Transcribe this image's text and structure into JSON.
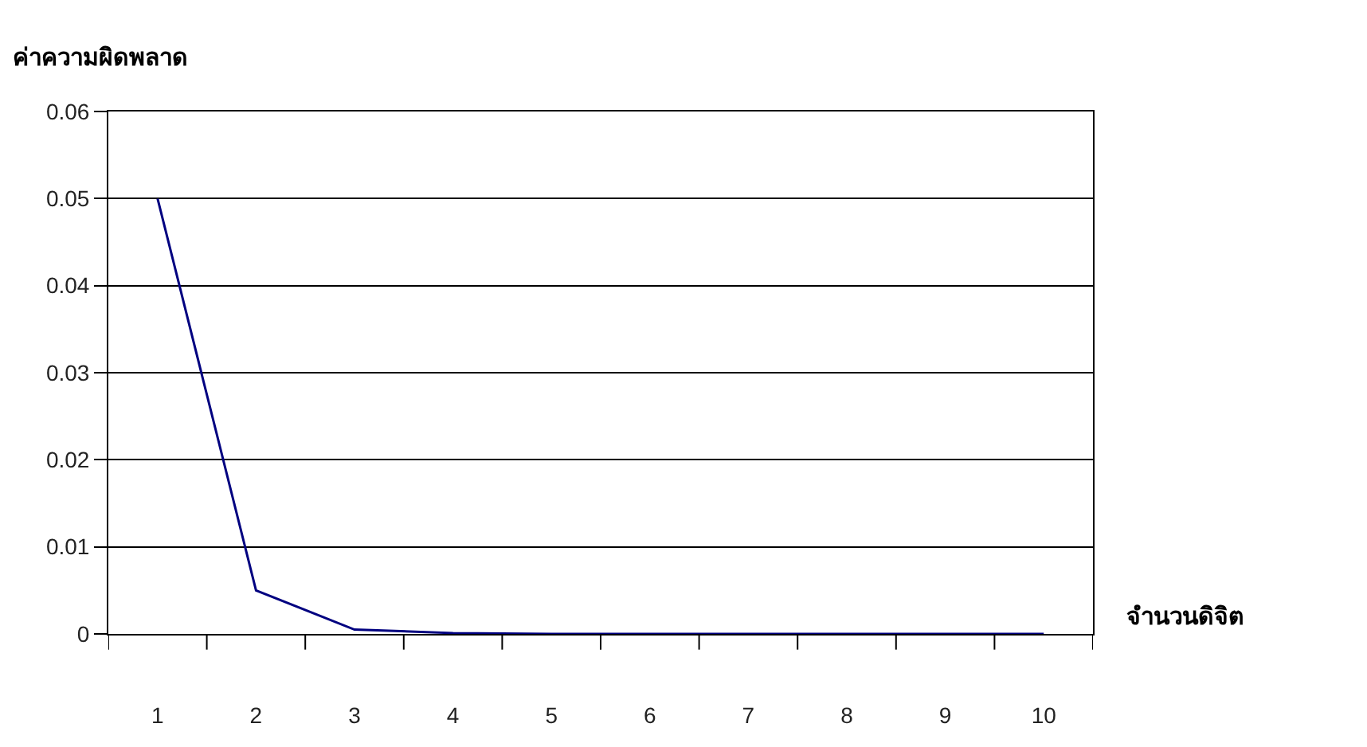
{
  "chart_data": {
    "type": "line",
    "xlabel": "จำนวนดิจิต",
    "ylabel": "ค่าความผิดพลาด",
    "categories": [
      "1",
      "2",
      "3",
      "4",
      "5",
      "6",
      "7",
      "8",
      "9",
      "10"
    ],
    "series": [
      {
        "color": "#000080",
        "values": [
          0.05,
          0.005,
          0.0005,
          0.0001,
          0,
          0,
          0,
          0,
          0,
          0
        ]
      }
    ],
    "ylim": [
      0,
      0.06
    ],
    "yticks": [
      0,
      0.01,
      0.02,
      0.03,
      0.04,
      0.05,
      0.06
    ],
    "grid": "y",
    "marker": "none",
    "line_style": "solid"
  }
}
